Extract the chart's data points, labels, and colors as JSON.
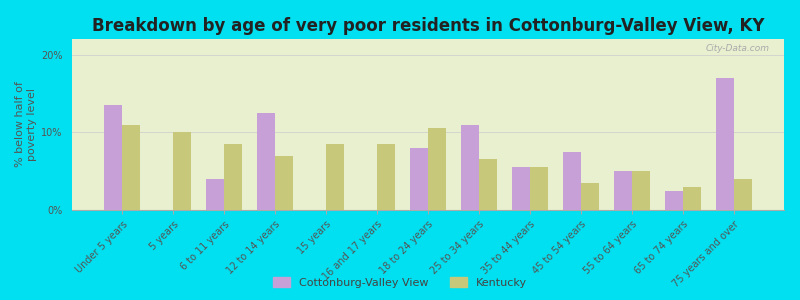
{
  "title": "Breakdown by age of very poor residents in Cottonburg-Valley View, KY",
  "ylabel": "% below half of\npoverty level",
  "categories": [
    "Under 5 years",
    "5 years",
    "6 to 11 years",
    "12 to 14 years",
    "15 years",
    "16 and 17 years",
    "18 to 24 years",
    "25 to 34 years",
    "35 to 44 years",
    "45 to 54 years",
    "55 to 64 years",
    "65 to 74 years",
    "75 years and over"
  ],
  "cottonburg_values": [
    13.5,
    0.0,
    4.0,
    12.5,
    0.0,
    0.0,
    8.0,
    11.0,
    5.5,
    7.5,
    5.0,
    2.5,
    17.0
  ],
  "kentucky_values": [
    11.0,
    10.0,
    8.5,
    7.0,
    8.5,
    8.5,
    10.5,
    6.5,
    5.5,
    3.5,
    5.0,
    3.0,
    4.0
  ],
  "cottonburg_color": "#c8a0d8",
  "kentucky_color": "#c8c87a",
  "background_outer": "#00e0f0",
  "background_inner_top": "#e8f0d0",
  "background_inner_bottom": "#d8e8c0",
  "ylim": [
    0,
    22
  ],
  "yticks": [
    0,
    10,
    20
  ],
  "ytick_labels": [
    "0%",
    "10%",
    "20%"
  ],
  "bar_width": 0.35,
  "title_fontsize": 12,
  "label_fontsize": 8,
  "tick_fontsize": 7,
  "legend_label1": "Cottonburg-Valley View",
  "legend_label2": "Kentucky",
  "watermark": "City-Data.com"
}
